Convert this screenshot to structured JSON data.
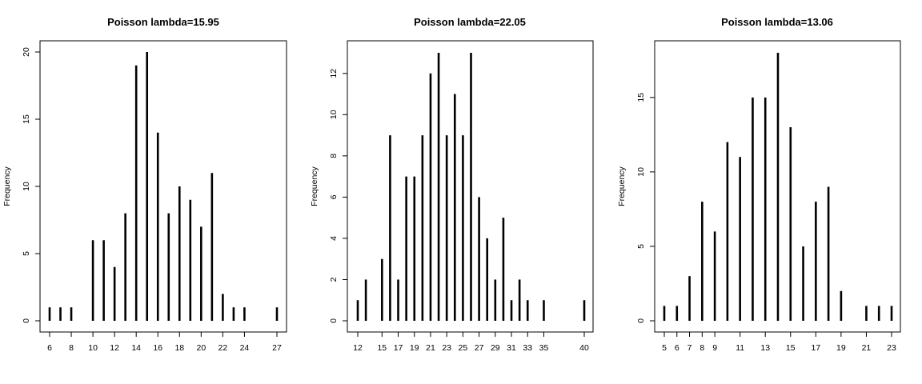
{
  "chart_data": [
    {
      "type": "bar",
      "title": "Poisson lambda=15.95",
      "xlabel": "",
      "ylabel": "Frequency",
      "x": [
        6,
        7,
        8,
        10,
        11,
        12,
        13,
        14,
        15,
        16,
        17,
        18,
        19,
        20,
        21,
        22,
        23,
        24,
        27
      ],
      "values": [
        1,
        1,
        1,
        6,
        6,
        4,
        8,
        19,
        20,
        14,
        8,
        10,
        9,
        7,
        11,
        2,
        1,
        1,
        1
      ],
      "xticks": [
        6,
        8,
        10,
        12,
        14,
        16,
        18,
        20,
        22,
        24,
        27
      ],
      "yticks": [
        0,
        5,
        10,
        15,
        20
      ],
      "xlim": [
        6,
        27
      ],
      "ylim": [
        0,
        20
      ],
      "grid": false
    },
    {
      "type": "bar",
      "title": "Poisson lambda=22.05",
      "xlabel": "",
      "ylabel": "Frequency",
      "x": [
        12,
        13,
        15,
        16,
        17,
        18,
        19,
        20,
        21,
        22,
        23,
        24,
        25,
        26,
        27,
        28,
        29,
        30,
        31,
        32,
        33,
        35,
        40
      ],
      "values": [
        1,
        2,
        3,
        9,
        2,
        7,
        7,
        9,
        12,
        13,
        9,
        11,
        9,
        13,
        6,
        4,
        2,
        5,
        1,
        2,
        1,
        1,
        1
      ],
      "xticks": [
        12,
        15,
        17,
        19,
        21,
        23,
        25,
        27,
        29,
        31,
        33,
        35,
        40
      ],
      "yticks": [
        0,
        2,
        4,
        6,
        8,
        10,
        12
      ],
      "xlim": [
        12,
        40
      ],
      "ylim": [
        0,
        13
      ],
      "grid": false
    },
    {
      "type": "bar",
      "title": "Poisson lambda=13.06",
      "xlabel": "",
      "ylabel": "Frequency",
      "x": [
        5,
        6,
        7,
        8,
        9,
        10,
        11,
        12,
        13,
        14,
        15,
        16,
        17,
        18,
        19,
        21,
        22,
        23
      ],
      "values": [
        1,
        1,
        3,
        8,
        6,
        12,
        11,
        15,
        15,
        18,
        13,
        5,
        8,
        9,
        2,
        1,
        1,
        1
      ],
      "xticks": [
        5,
        6,
        7,
        8,
        9,
        11,
        13,
        15,
        17,
        19,
        21,
        23
      ],
      "yticks": [
        0,
        5,
        10,
        15
      ],
      "xlim": [
        5,
        23
      ],
      "ylim": [
        0,
        18
      ],
      "grid": false
    }
  ]
}
